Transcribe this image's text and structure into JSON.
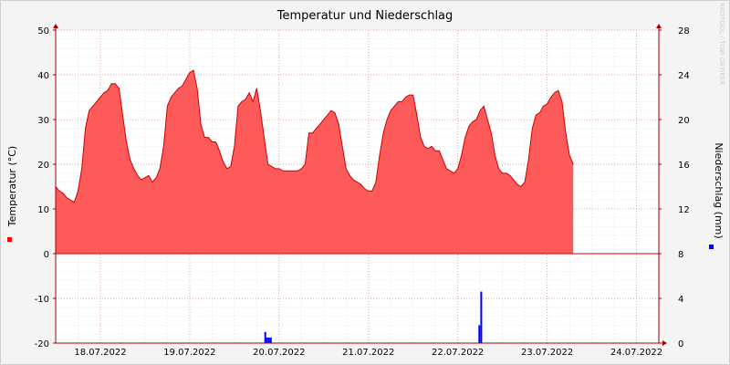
{
  "chart_data": {
    "type": "area",
    "title": "Temperatur und Niederschlag",
    "ylabel_left": "Temperatur (°C)",
    "ylabel_right": "Niederschlag (mm)",
    "watermark": "RRDTOOL / TOBI OETIKER",
    "ylim_left": [
      -20,
      50
    ],
    "ylim_right": [
      0,
      28
    ],
    "yticks_left": [
      "50",
      "40",
      "30",
      "20",
      "10",
      "0",
      "-10",
      "-20"
    ],
    "yticks_right": [
      "28",
      "24",
      "20",
      "16",
      "12",
      "8",
      "4",
      "0"
    ],
    "xlim_hours": [
      0,
      162
    ],
    "xticks": [
      {
        "label": "18.07.2022",
        "hour": 12
      },
      {
        "label": "19.07.2022",
        "hour": 36
      },
      {
        "label": "20.07.2022",
        "hour": 60
      },
      {
        "label": "21.07.2022",
        "hour": 84
      },
      {
        "label": "22.07.2022",
        "hour": 108
      },
      {
        "label": "23.07.2022",
        "hour": 132
      },
      {
        "label": "24.07.2022",
        "hour": 156
      }
    ],
    "grid": true,
    "series": [
      {
        "name": "Temperatur",
        "unit": "°C",
        "color": "#ff5a5a",
        "points": [
          [
            0,
            15
          ],
          [
            1,
            14
          ],
          [
            2,
            13.5
          ],
          [
            3,
            12.5
          ],
          [
            4,
            12
          ],
          [
            5,
            11.5
          ],
          [
            6,
            14
          ],
          [
            7,
            19
          ],
          [
            8,
            28
          ],
          [
            9,
            32
          ],
          [
            10,
            33
          ],
          [
            11,
            34
          ],
          [
            12,
            35
          ],
          [
            13,
            36
          ],
          [
            14,
            36.5
          ],
          [
            15,
            38
          ],
          [
            16,
            38
          ],
          [
            17,
            37
          ],
          [
            18,
            31
          ],
          [
            19,
            25
          ],
          [
            20,
            21
          ],
          [
            21,
            19
          ],
          [
            22,
            17.5
          ],
          [
            23,
            16.5
          ],
          [
            24,
            17
          ],
          [
            25,
            17.5
          ],
          [
            26,
            16
          ],
          [
            27,
            17
          ],
          [
            28,
            19
          ],
          [
            29,
            24
          ],
          [
            30,
            33
          ],
          [
            31,
            35
          ],
          [
            32,
            36
          ],
          [
            33,
            37
          ],
          [
            34,
            37.5
          ],
          [
            35,
            39
          ],
          [
            36,
            40.5
          ],
          [
            37,
            41
          ],
          [
            38,
            37
          ],
          [
            39,
            29
          ],
          [
            40,
            26
          ],
          [
            41,
            26
          ],
          [
            42,
            25
          ],
          [
            43,
            25
          ],
          [
            44,
            23
          ],
          [
            45,
            20.5
          ],
          [
            46,
            19
          ],
          [
            47,
            19.5
          ],
          [
            48,
            24
          ],
          [
            49,
            33
          ],
          [
            50,
            34
          ],
          [
            51,
            34.5
          ],
          [
            52,
            36
          ],
          [
            53,
            34
          ],
          [
            54,
            37
          ],
          [
            55,
            32
          ],
          [
            56,
            26
          ],
          [
            57,
            20
          ],
          [
            58,
            19.5
          ],
          [
            59,
            19
          ],
          [
            60,
            19
          ],
          [
            61,
            18.5
          ],
          [
            62,
            18.5
          ],
          [
            63,
            18.5
          ],
          [
            64,
            18.5
          ],
          [
            65,
            18.5
          ],
          [
            66,
            19
          ],
          [
            67,
            20
          ],
          [
            68,
            27
          ],
          [
            69,
            27
          ],
          [
            70,
            28
          ],
          [
            71,
            29
          ],
          [
            72,
            30
          ],
          [
            73,
            31
          ],
          [
            74,
            32
          ],
          [
            75,
            31.5
          ],
          [
            76,
            29
          ],
          [
            77,
            24
          ],
          [
            78,
            19
          ],
          [
            79,
            17.5
          ],
          [
            80,
            16.5
          ],
          [
            81,
            16
          ],
          [
            82,
            15.5
          ],
          [
            83,
            14.5
          ],
          [
            84,
            14
          ],
          [
            85,
            14
          ],
          [
            86,
            16
          ],
          [
            87,
            22
          ],
          [
            88,
            27
          ],
          [
            89,
            30
          ],
          [
            90,
            32
          ],
          [
            91,
            33
          ],
          [
            92,
            34
          ],
          [
            93,
            34
          ],
          [
            94,
            35
          ],
          [
            95,
            35.5
          ],
          [
            96,
            35.5
          ],
          [
            97,
            31
          ],
          [
            98,
            26
          ],
          [
            99,
            24
          ],
          [
            100,
            23.5
          ],
          [
            101,
            24
          ],
          [
            102,
            23
          ],
          [
            103,
            23
          ],
          [
            104,
            21
          ],
          [
            105,
            19
          ],
          [
            106,
            18.5
          ],
          [
            107,
            18
          ],
          [
            108,
            19
          ],
          [
            109,
            22
          ],
          [
            110,
            26
          ],
          [
            111,
            28.5
          ],
          [
            112,
            29.5
          ],
          [
            113,
            30
          ],
          [
            114,
            32
          ],
          [
            115,
            33
          ],
          [
            116,
            30
          ],
          [
            117,
            27
          ],
          [
            118,
            22
          ],
          [
            119,
            19
          ],
          [
            120,
            18
          ],
          [
            121,
            18
          ],
          [
            122,
            17.5
          ],
          [
            123,
            16.5
          ],
          [
            124,
            15.5
          ],
          [
            125,
            15
          ],
          [
            126,
            16
          ],
          [
            127,
            21
          ],
          [
            128,
            28
          ],
          [
            129,
            31
          ],
          [
            130,
            31.5
          ],
          [
            131,
            33
          ],
          [
            132,
            33.5
          ],
          [
            133,
            35
          ],
          [
            134,
            36
          ],
          [
            135,
            36.5
          ],
          [
            136,
            34
          ],
          [
            137,
            27
          ],
          [
            138,
            22
          ],
          [
            139,
            20
          ]
        ]
      },
      {
        "name": "Niederschlag",
        "unit": "mm",
        "color": "#0000ff",
        "bar_width_hours": 0.5,
        "bars": [
          [
            56.3,
            1.0
          ],
          [
            56.8,
            0.5
          ],
          [
            57.3,
            0.5
          ],
          [
            57.8,
            0.5
          ],
          [
            113.8,
            1.6
          ],
          [
            114.3,
            4.6
          ]
        ]
      }
    ]
  }
}
